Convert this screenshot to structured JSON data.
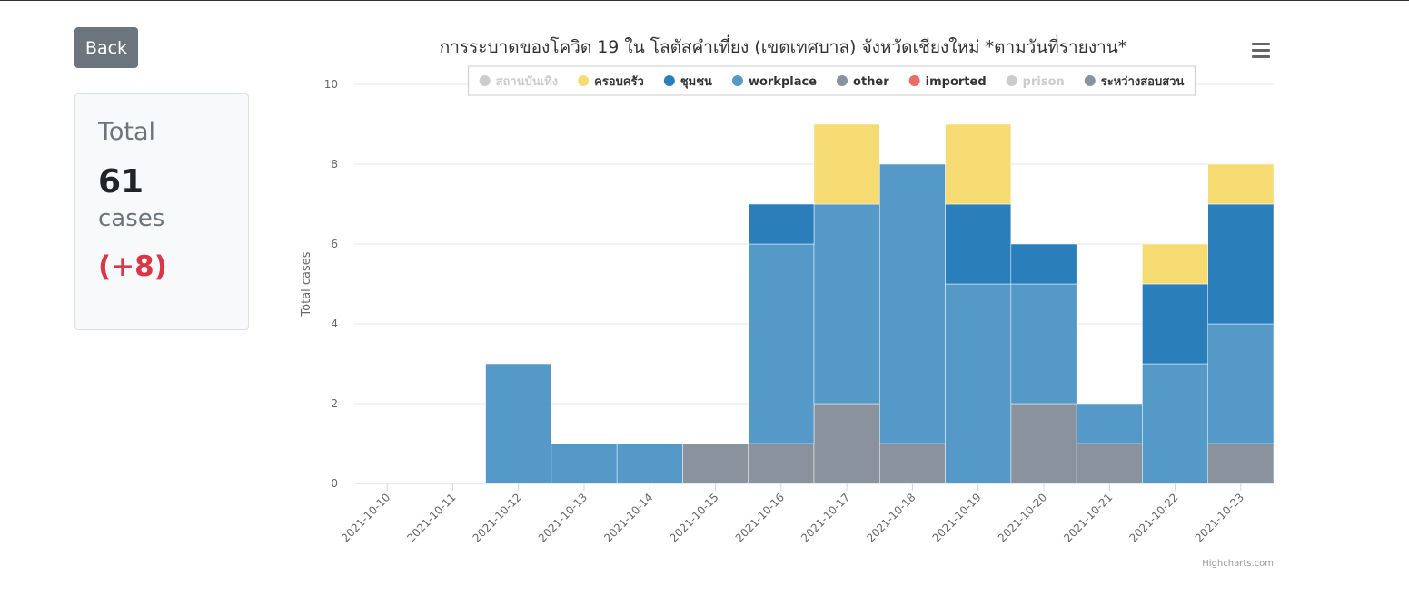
{
  "back": "Back",
  "summary": {
    "title": "Total",
    "total": "61",
    "unit": "cases",
    "change": "(+8)"
  },
  "chart_data": {
    "type": "stacked-bar",
    "title": "การระบาดของโควิด 19 ใน โลตัสคำเที่ยง (เขตเทศบาล) จังหวัดเชียงใหม่ *ตามวันที่รายงาน*",
    "y_label": "Total cases",
    "credits": "Highcharts.com",
    "categories": [
      "2021-10-10",
      "2021-10-11",
      "2021-10-12",
      "2021-10-13",
      "2021-10-14",
      "2021-10-15",
      "2021-10-16",
      "2021-10-17",
      "2021-10-18",
      "2021-10-19",
      "2021-10-20",
      "2021-10-21",
      "2021-10-22",
      "2021-10-23"
    ],
    "series": [
      {
        "name": "สถานบันเทิง",
        "color": "#cccccc",
        "visible": false
      },
      {
        "name": "ครอบครัว",
        "color": "#f6db72",
        "values": [
          0,
          0,
          0,
          0,
          0,
          0,
          0,
          2,
          0,
          2,
          0,
          0,
          1,
          1
        ]
      },
      {
        "name": "ชุมชน",
        "color": "#2a7fba",
        "values": [
          0,
          0,
          0,
          0,
          0,
          0,
          1,
          0,
          0,
          2,
          1,
          0,
          2,
          3
        ]
      },
      {
        "name": "workplace",
        "color": "#5599c9",
        "values": [
          0,
          0,
          3,
          1,
          1,
          0,
          5,
          5,
          7,
          5,
          3,
          1,
          3,
          3
        ]
      },
      {
        "name": "other",
        "color": "#8a939d",
        "values": [
          0,
          0,
          0,
          0,
          0,
          0,
          0,
          0,
          0,
          0,
          0,
          0,
          0,
          0
        ]
      },
      {
        "name": "imported",
        "color": "#e86d6a",
        "values": [
          0,
          0,
          0,
          0,
          0,
          0,
          0,
          0,
          0,
          0,
          0,
          0,
          0,
          0
        ]
      },
      {
        "name": "prison",
        "color": "#cccccc",
        "visible": false
      },
      {
        "name": "ระหว่างสอบสวน",
        "color": "#8a939d",
        "values": [
          0,
          0,
          0,
          0,
          0,
          1,
          1,
          2,
          1,
          0,
          2,
          1,
          0,
          1
        ]
      }
    ],
    "ylim": [
      0,
      10
    ],
    "yticks": [
      0,
      2,
      4,
      6,
      8,
      10
    ],
    "grid": true,
    "legend": "top"
  }
}
